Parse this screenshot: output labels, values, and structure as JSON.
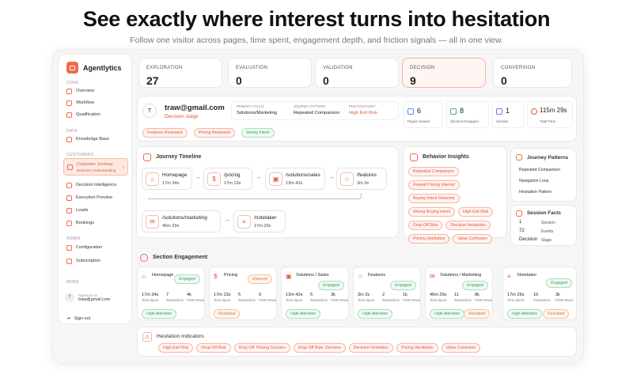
{
  "hero": {
    "title": "See exactly where interest turns into hesitation",
    "subtitle": "Follow one visitor across pages, time spent, engagement depth, and friction signals — all in one view."
  },
  "brand": {
    "name": "Agentlytics",
    "accent": "#ef6b4a"
  },
  "sidebar": {
    "sections": [
      "CORE",
      "DATA",
      "CUSTOMERS",
      "ADMIN",
      "MORE"
    ],
    "core": [
      {
        "label": "Overview",
        "icon": "grid-icon"
      },
      {
        "label": "Workflow",
        "icon": "workflow-icon"
      },
      {
        "label": "Qualification",
        "icon": "target-icon"
      }
    ],
    "data": [
      {
        "label": "Knowledge Base",
        "icon": "book-icon"
      }
    ],
    "customers": [
      {
        "label": "Customer Journey",
        "sub": "Behavior Understanding",
        "icon": "route-icon"
      },
      {
        "label": "Decision Intelligence",
        "icon": "brain-icon"
      },
      {
        "label": "Execution Preview",
        "icon": "play-icon"
      },
      {
        "label": "Leads",
        "icon": "users-icon"
      },
      {
        "label": "Bookings",
        "icon": "calendar-icon"
      }
    ],
    "admin": [
      {
        "label": "Configuration",
        "icon": "gear-icon"
      },
      {
        "label": "Subscription",
        "icon": "card-icon"
      }
    ],
    "signed_label": "Signed in as",
    "avatar": "T",
    "email": "traw@gmail.com",
    "signout": "Sign out"
  },
  "stages": [
    {
      "label": "EXPLORATION",
      "value": "27"
    },
    {
      "label": "EVALUATION",
      "value": "0"
    },
    {
      "label": "VALIDATION",
      "value": "0"
    },
    {
      "label": "DECISION",
      "value": "9"
    },
    {
      "label": "CONVERSION",
      "value": "0"
    }
  ],
  "visitor": {
    "avatar": "T",
    "email": "traw@gmail.com",
    "stage": "Decision stage",
    "primary_focus_label": "PRIMARY FOCUS",
    "primary_focus": "Solutions/Marketing",
    "pattern_label": "JOURNEY PATTERN",
    "pattern": "Repeated Comparison",
    "friction_label": "FRICTION POINT",
    "friction": "High Exit Risk",
    "tags": [
      "Features Reviewed",
      "Pricing Reviewed",
      "Strong Intent"
    ]
  },
  "metrics": [
    {
      "value": "6",
      "label": "Pages Viewed"
    },
    {
      "value": "8",
      "label": "Sections Engaged"
    },
    {
      "value": "1",
      "label": "Session"
    },
    {
      "value": "115m 29s",
      "label": "Total Time"
    }
  ],
  "timeline": {
    "title": "Journey Timeline",
    "nodes": [
      {
        "page": "Homepage",
        "time": "17m 34s"
      },
      {
        "page": "/pricing",
        "time": "17m 13s"
      },
      {
        "page": "/solutions/sales",
        "time": "13m 42s"
      },
      {
        "page": "/features",
        "time": "3m 2s"
      },
      {
        "page": "/solutions/marketing",
        "time": "46m 29s"
      },
      {
        "page": "/notetaker",
        "time": "17m 29s"
      }
    ]
  },
  "insights": {
    "title": "Behavior Insights",
    "tags": [
      "Repeated Comparison",
      "Repeat Pricing Interest",
      "Buying Intent Detected",
      "Strong Buying Intent",
      "High Exit Risk",
      "Drop-Off Risk",
      "Decision Hesitation",
      "Pricing Hesitation",
      "Value Confusion"
    ]
  },
  "patterns": {
    "title": "Journey Patterns",
    "items": [
      "Repeated Comparison",
      "Navigation Loop",
      "Hesitation Pattern"
    ]
  },
  "session": {
    "title": "Session Facts",
    "rows": [
      {
        "value": "1",
        "label": "Session"
      },
      {
        "value": "72",
        "label": "Events"
      },
      {
        "value": "Decision",
        "label": "Stage"
      }
    ]
  },
  "engagement": {
    "title": "Section Engagement",
    "metric_labels": [
      "Time Spent",
      "Interactions",
      "Posts Read"
    ],
    "sections": [
      {
        "name": "Homepage",
        "status": "Engaged",
        "time": "17m 34s",
        "interactions": "7",
        "posts": "4k",
        "signal": "High Attention"
      },
      {
        "name": "Pricing",
        "status": "Glanced",
        "time": "17m 13s",
        "interactions": "5",
        "posts": "0",
        "signal": "Revisited"
      },
      {
        "name": "Solutions / Sales",
        "status": "Engaged",
        "time": "13m 42s",
        "interactions": "5",
        "posts": "3k",
        "signal": "High Attention"
      },
      {
        "name": "Features",
        "status": "Engaged",
        "time": "3m 2s",
        "interactions": "2",
        "posts": "1k",
        "signal": "High Attention"
      },
      {
        "name": "Solutions / Marketing",
        "status": "Engaged",
        "time": "46m 29s",
        "interactions": "11",
        "posts": "8k",
        "signal": "Revisited",
        "extra": "High Attention"
      },
      {
        "name": "Notetaker",
        "status": "Engaged",
        "time": "17m 29s",
        "interactions": "10",
        "posts": "3k",
        "signal": "Revisited",
        "extra": "High Attention"
      }
    ]
  },
  "hesitation": {
    "title": "Hesitation Indicators",
    "tags": [
      "High Exit Risk",
      "Drop-Off Risk",
      "Drop Off: Pricing Concern",
      "Drop Off Risk: Decision",
      "Decision Hesitation",
      "Pricing Hesitation",
      "Value Confusion"
    ]
  }
}
